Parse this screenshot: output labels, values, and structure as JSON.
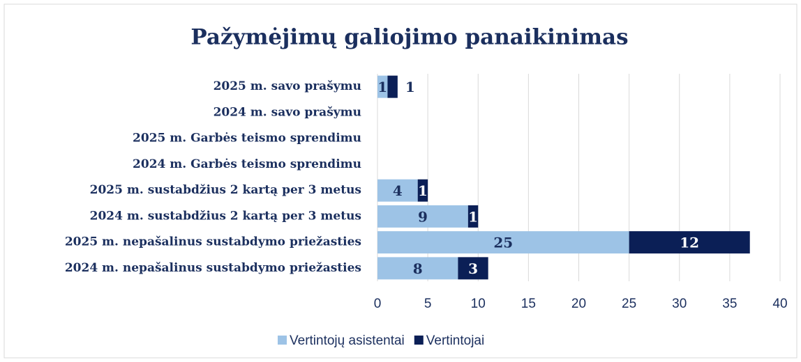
{
  "chart_data": {
    "type": "stacked_bar_horizontal",
    "title": "Pažymėjimų galiojimo panaikinimas",
    "categories": [
      "2025 m. savo prašymu",
      "2024 m. savo prašymu",
      "2025 m. Garbės teismo sprendimu",
      "2024 m. Garbės teismo sprendimu",
      "2025 m. sustabdžius 2 kartą per 3 metus",
      "2024 m. sustabdžius 2 kartą per 3 metus",
      "2025 m. nepašalinus sustabdymo priežasties",
      "2024 m. nepašalinus sustabdymo priežasties"
    ],
    "series": [
      {
        "name": "Vertintojų asistentai",
        "color": "#9dc3e6",
        "values": [
          1,
          null,
          null,
          null,
          4,
          9,
          25,
          8
        ]
      },
      {
        "name": "Vertintojai",
        "color": "#0b1f56",
        "values": [
          1,
          null,
          null,
          null,
          1,
          1,
          12,
          3
        ]
      }
    ],
    "xlim": [
      0,
      40
    ],
    "xticks": [
      0,
      5,
      10,
      15,
      20,
      25,
      30,
      35,
      40
    ],
    "grid": true,
    "legend": "bottom"
  }
}
